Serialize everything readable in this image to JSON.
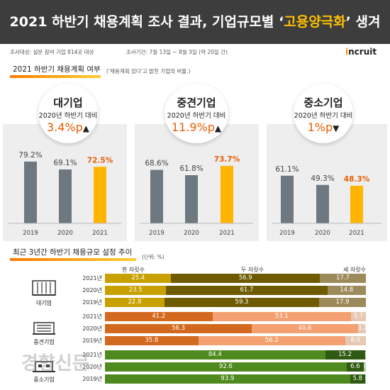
{
  "header": {
    "title_prefix": "2021 하반기 채용계획 조사 결과, 기업규모별 ‘",
    "title_highlight": "고용양극화",
    "title_suffix": "’ 생겨"
  },
  "meta": {
    "survey_info": "조사대상: 설문 참여 기업 814곳 대상",
    "survey_period": "조사기간: 7월 13일 ~ 8월 3일 (약 20일 간)",
    "logo_text": "ncruit",
    "logo_dot": "i"
  },
  "section1": {
    "heading": "2021 하반기 채용계획 여부",
    "note": "('채용계획 있다'고 밝힌 기업의 비율.)"
  },
  "section2": {
    "heading": "최근 3년간 하반기 채용규모 설정 추이",
    "unit": "(단위: %)",
    "col_one": "한 자릿수",
    "col_two": "두 자릿수",
    "col_three": "세 자릿수"
  },
  "groups": [
    {
      "name": "대기업",
      "compare": "2020년 하반기 대비",
      "change": "3.4%p",
      "arrow": "▲"
    },
    {
      "name": "중견기업",
      "compare": "2020년 하반기 대비",
      "change": "11.9%p",
      "arrow": "▲"
    },
    {
      "name": "중소기업",
      "compare": "2020년 하반기 대비",
      "change": "1%p",
      "arrow": "▼"
    }
  ],
  "chart_data": [
    {
      "type": "bar",
      "title": "대기업",
      "categories": [
        "2019",
        "2020",
        "2021"
      ],
      "values": [
        79.2,
        69.1,
        72.5
      ],
      "labels": [
        "79.2%",
        "69.1%",
        "72.5%"
      ],
      "ylim": [
        0,
        100
      ],
      "colors": [
        "#6e7880",
        "#6e7880",
        "#ffb400"
      ]
    },
    {
      "type": "bar",
      "title": "중견기업",
      "categories": [
        "2019",
        "2020",
        "2021"
      ],
      "values": [
        68.6,
        61.8,
        73.7
      ],
      "labels": [
        "68.6%",
        "61.8%",
        "73.7%"
      ],
      "ylim": [
        0,
        100
      ],
      "colors": [
        "#6e7880",
        "#6e7880",
        "#ffb400"
      ]
    },
    {
      "type": "bar",
      "title": "중소기업",
      "categories": [
        "2019",
        "2020",
        "2021"
      ],
      "values": [
        61.1,
        49.3,
        48.3
      ],
      "labels": [
        "61.1%",
        "49.3%",
        "48.3%"
      ],
      "ylim": [
        0,
        100
      ],
      "colors": [
        "#6e7880",
        "#6e7880",
        "#ffb400"
      ]
    },
    {
      "type": "bar",
      "stacked": true,
      "orientation": "horizontal",
      "title": "최근 3년간 하반기 채용규모 설정 추이",
      "series_names": [
        "한 자릿수",
        "두 자릿수",
        "세 자릿수"
      ],
      "groups": [
        {
          "name": "대기업",
          "icon": "building-large-icon",
          "colors": [
            "#c8a000",
            "#6e5a00",
            "#9c8a5a"
          ],
          "rows": [
            {
              "year": "2021년",
              "values": [
                25.4,
                56.9,
                17.7
              ]
            },
            {
              "year": "2020년",
              "values": [
                23.5,
                61.7,
                14.8
              ]
            },
            {
              "year": "2019년",
              "values": [
                22.8,
                59.3,
                17.9
              ]
            }
          ]
        },
        {
          "name": "중견기업",
          "icon": "building-medium-icon",
          "colors": [
            "#d2691e",
            "#f4a070",
            "#e6c8b4"
          ],
          "rows": [
            {
              "year": "2021년",
              "values": [
                41.2,
                53.1,
                5.7
              ]
            },
            {
              "year": "2020년",
              "values": [
                56.3,
                40.6,
                3.1
              ]
            },
            {
              "year": "2019년",
              "values": [
                35.8,
                56.2,
                8.0
              ]
            }
          ]
        },
        {
          "name": "중소기업",
          "icon": "building-small-icon",
          "colors": [
            "#4f8a1e",
            "#2f5a12",
            "#a9c890"
          ],
          "rows": [
            {
              "year": "2021년",
              "values": [
                84.4,
                15.2,
                0.4
              ]
            },
            {
              "year": "2020년",
              "values": [
                92.6,
                6.6,
                0.8
              ]
            },
            {
              "year": "2019년",
              "values": [
                93.9,
                5.8,
                0.3
              ]
            }
          ]
        }
      ]
    }
  ],
  "watermark": "경향신문"
}
